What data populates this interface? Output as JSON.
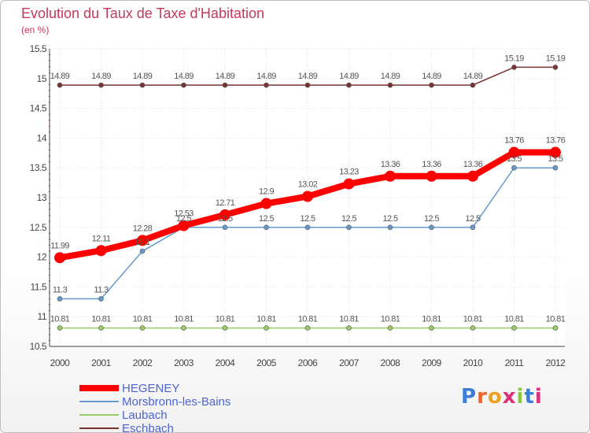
{
  "header": {
    "title": "Evolution du Taux de Taxe d'Habitation",
    "subtitle": "(en %)"
  },
  "logo": {
    "text": "Proxiti"
  },
  "chart_data": {
    "type": "line",
    "title": "Evolution du Taux de Taxe d'Habitation",
    "subtitle": "(en %)",
    "xlabel": "",
    "ylabel": "",
    "categories": [
      "2000",
      "2001",
      "2002",
      "2003",
      "2004",
      "2005",
      "2006",
      "2007",
      "2008",
      "2009",
      "2010",
      "2011",
      "2012"
    ],
    "ylim": [
      10.5,
      15.5
    ],
    "yticks": [
      "10.5",
      "11",
      "11.5",
      "12",
      "12.5",
      "13",
      "13.5",
      "14",
      "14.5",
      "15",
      "15.5"
    ],
    "grid": true,
    "legend_position": "bottom-left",
    "series": [
      {
        "name": "HEGENEY",
        "color": "#ff0000",
        "values": [
          11.99,
          12.11,
          12.28,
          12.53,
          12.71,
          12.9,
          13.02,
          13.23,
          13.36,
          13.36,
          13.36,
          13.76,
          13.76
        ],
        "labels": [
          "11.99",
          "12.11",
          "12.28",
          "12.53",
          "12.71",
          "12.9",
          "13.02",
          "13.23",
          "13.36",
          "13.36",
          "13.36",
          "13.76",
          "13.76"
        ]
      },
      {
        "name": "Morsbronn-les-Bains",
        "color": "#6699cc",
        "values": [
          11.3,
          11.3,
          12.1,
          12.5,
          12.5,
          12.5,
          12.5,
          12.5,
          12.5,
          12.5,
          12.5,
          13.5,
          13.5
        ],
        "labels": [
          "11.3",
          "11.3",
          "12.1",
          "12.5",
          "12.5",
          "12.5",
          "12.5",
          "12.5",
          "12.5",
          "12.5",
          "12.5",
          "13.5",
          "13.5"
        ]
      },
      {
        "name": "Laubach",
        "color": "#99cc66",
        "values": [
          10.81,
          10.81,
          10.81,
          10.81,
          10.81,
          10.81,
          10.81,
          10.81,
          10.81,
          10.81,
          10.81,
          10.81,
          10.81
        ],
        "labels": [
          "10.81",
          "10.81",
          "10.81",
          "10.81",
          "10.81",
          "10.81",
          "10.81",
          "10.81",
          "10.81",
          "10.81",
          "10.81",
          "10.81",
          "10.81"
        ]
      },
      {
        "name": "Eschbach",
        "color": "#7a3333",
        "values": [
          14.89,
          14.89,
          14.89,
          14.89,
          14.89,
          14.89,
          14.89,
          14.89,
          14.89,
          14.89,
          14.89,
          15.19,
          15.19
        ],
        "labels": [
          "14.89",
          "14.89",
          "14.89",
          "14.89",
          "14.89",
          "14.89",
          "14.89",
          "14.89",
          "14.89",
          "14.89",
          "14.89",
          "15.19",
          "15.19"
        ]
      }
    ]
  }
}
